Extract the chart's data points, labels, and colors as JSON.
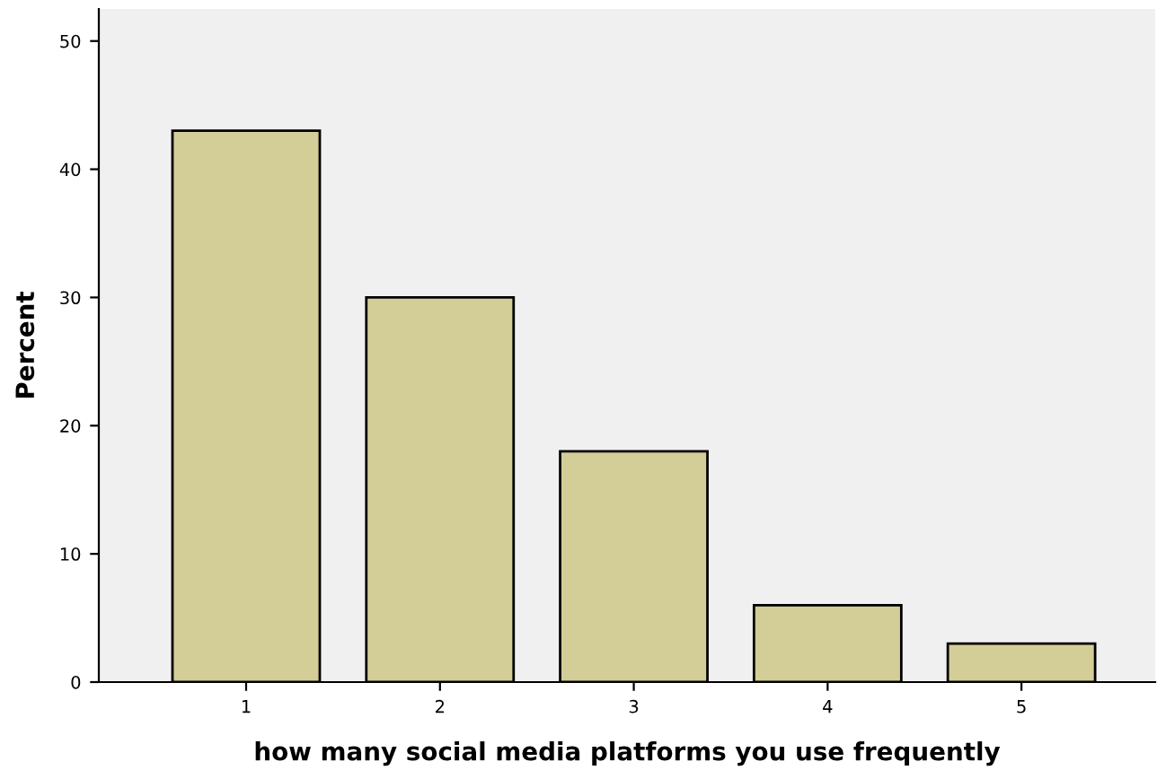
{
  "chart_data": {
    "type": "bar",
    "xlabel": "how many social media platforms you use frequently",
    "ylabel": "Percent",
    "categories": [
      "1",
      "2",
      "3",
      "4",
      "5"
    ],
    "values": [
      43,
      30,
      18,
      6,
      3
    ],
    "color": "#d3ce97",
    "ylim": [
      0,
      52.5
    ],
    "yticks": [
      0,
      10,
      20,
      30,
      40,
      50
    ],
    "grid": false,
    "legend": false
  }
}
